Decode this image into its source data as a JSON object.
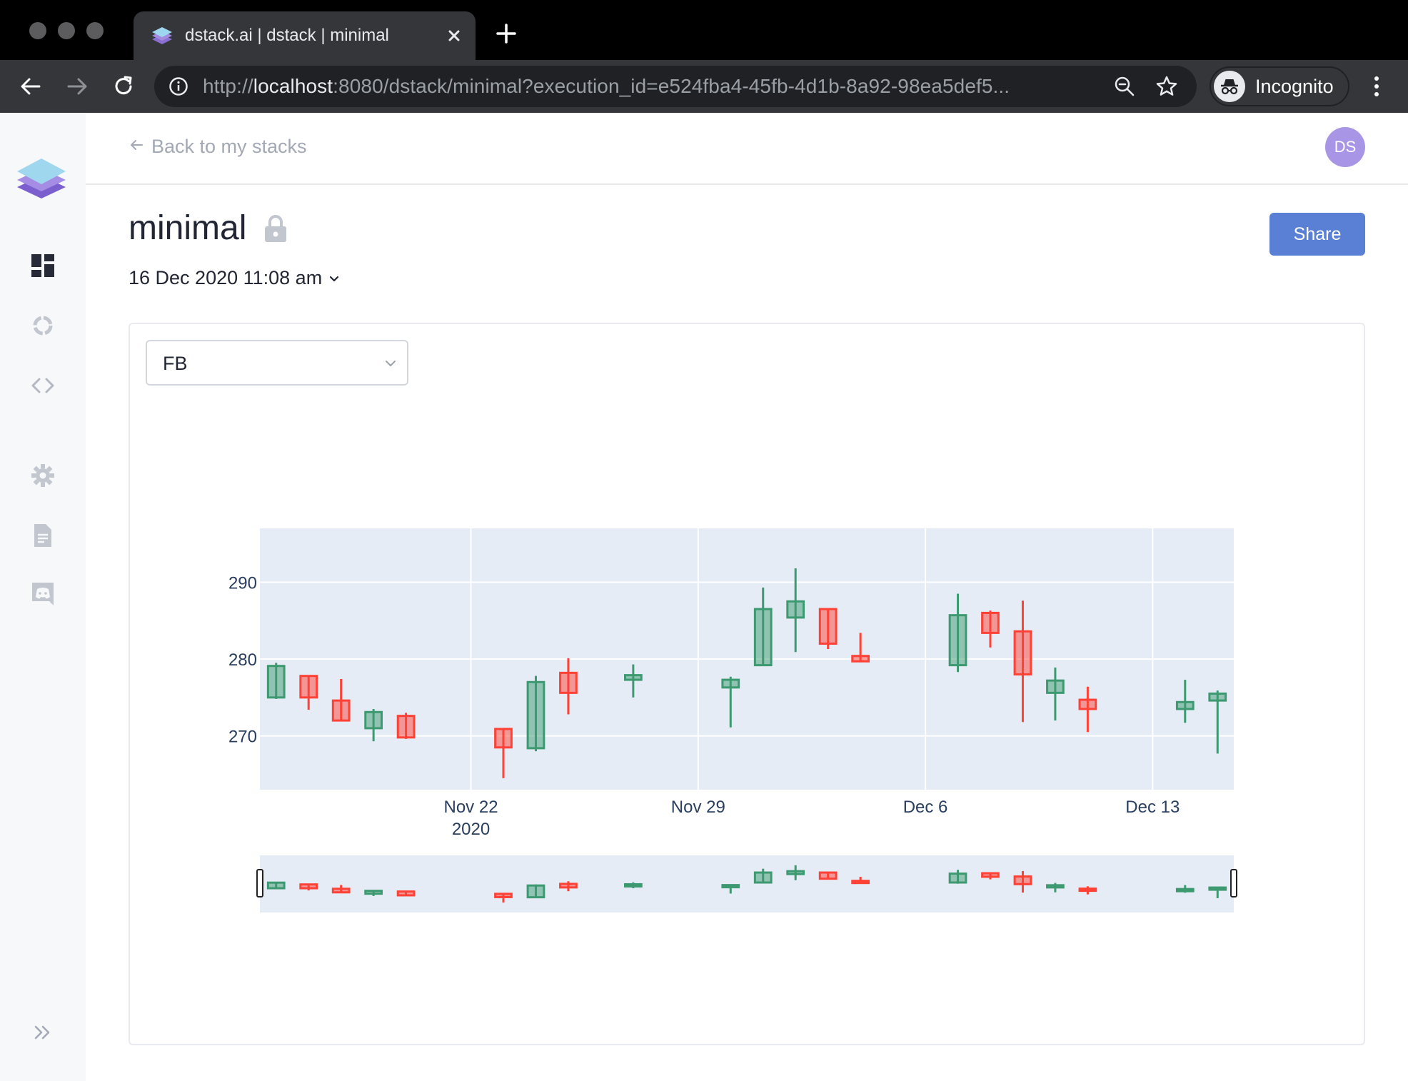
{
  "browser": {
    "tab_title": "dstack.ai | dstack | minimal",
    "url_prefix": "http://",
    "url_host": "localhost",
    "url_rest": ":8080/dstack/minimal?execution_id=e524fba4-45fb-4d1b-8a92-98ea5def5...",
    "profile_label": "Incognito",
    "icons": [
      "back-icon",
      "forward-icon",
      "reload-icon",
      "info-icon",
      "zoom-icon",
      "star-icon",
      "incognito-icon",
      "menu-icon"
    ]
  },
  "sidebar": {
    "items": [
      "dashboard-icon",
      "jobs-icon",
      "code-icon",
      "settings-icon",
      "docs-icon",
      "discord-icon",
      "expand-icon"
    ]
  },
  "topbar": {
    "back_label": "Back to my stacks",
    "avatar_initials": "DS"
  },
  "stack": {
    "title": "minimal",
    "date": "16 Dec 2020 11:08 am",
    "share_label": "Share"
  },
  "controls": {
    "ticker_value": "FB"
  },
  "colors": {
    "increasing": "#3d9970",
    "decreasing": "#ff4136",
    "plot_bg": "#e5ecf6",
    "accent": "#5a80d6"
  },
  "chart_data": {
    "type": "candlestick",
    "title": "",
    "xlabel": "",
    "ylabel": "",
    "ylim": [
      263,
      297
    ],
    "y_ticks": [
      270,
      280,
      290
    ],
    "x_ticks": [
      {
        "date": "2020-11-22",
        "label": "Nov 22",
        "sublabel": "2020"
      },
      {
        "date": "2020-11-29",
        "label": "Nov 29",
        "sublabel": ""
      },
      {
        "date": "2020-12-06",
        "label": "Dec 6",
        "sublabel": ""
      },
      {
        "date": "2020-12-13",
        "label": "Dec 13",
        "sublabel": ""
      }
    ],
    "x_range": [
      "2020-11-15T12:00",
      "2020-12-15T12:00"
    ],
    "grid": true,
    "rangeslider": true,
    "series": [
      {
        "date": "2020-11-16",
        "open": 275.0,
        "high": 279.5,
        "low": 274.8,
        "close": 279.1
      },
      {
        "date": "2020-11-17",
        "open": 277.8,
        "high": 277.8,
        "low": 273.4,
        "close": 275.0
      },
      {
        "date": "2020-11-18",
        "open": 274.6,
        "high": 277.4,
        "low": 271.9,
        "close": 272.0
      },
      {
        "date": "2020-11-19",
        "open": 271.0,
        "high": 273.5,
        "low": 269.3,
        "close": 273.1
      },
      {
        "date": "2020-11-20",
        "open": 272.6,
        "high": 273.0,
        "low": 269.6,
        "close": 269.8
      },
      {
        "date": "2020-11-23",
        "open": 270.9,
        "high": 270.9,
        "low": 264.5,
        "close": 268.5
      },
      {
        "date": "2020-11-24",
        "open": 268.4,
        "high": 277.8,
        "low": 268.0,
        "close": 277.0
      },
      {
        "date": "2020-11-25",
        "open": 278.2,
        "high": 280.1,
        "low": 272.8,
        "close": 275.6
      },
      {
        "date": "2020-11-27",
        "open": 277.3,
        "high": 279.3,
        "low": 275.0,
        "close": 277.9
      },
      {
        "date": "2020-11-30",
        "open": 276.3,
        "high": 277.7,
        "low": 271.1,
        "close": 277.3
      },
      {
        "date": "2020-12-01",
        "open": 279.2,
        "high": 289.3,
        "low": 279.1,
        "close": 286.5
      },
      {
        "date": "2020-12-02",
        "open": 285.4,
        "high": 291.8,
        "low": 280.9,
        "close": 287.5
      },
      {
        "date": "2020-12-03",
        "open": 286.5,
        "high": 286.5,
        "low": 281.3,
        "close": 282.0
      },
      {
        "date": "2020-12-04",
        "open": 280.4,
        "high": 283.4,
        "low": 279.6,
        "close": 279.7
      },
      {
        "date": "2020-12-07",
        "open": 279.2,
        "high": 288.5,
        "low": 278.3,
        "close": 285.7
      },
      {
        "date": "2020-12-08",
        "open": 286.0,
        "high": 286.3,
        "low": 281.5,
        "close": 283.4
      },
      {
        "date": "2020-12-09",
        "open": 283.6,
        "high": 287.6,
        "low": 271.8,
        "close": 278.0
      },
      {
        "date": "2020-12-10",
        "open": 275.6,
        "high": 278.9,
        "low": 272.0,
        "close": 277.2
      },
      {
        "date": "2020-12-11",
        "open": 274.7,
        "high": 276.4,
        "low": 270.5,
        "close": 273.5
      },
      {
        "date": "2020-12-14",
        "open": 273.5,
        "high": 277.3,
        "low": 271.7,
        "close": 274.4
      },
      {
        "date": "2020-12-15",
        "open": 274.6,
        "high": 275.9,
        "low": 267.7,
        "close": 275.5
      }
    ]
  }
}
